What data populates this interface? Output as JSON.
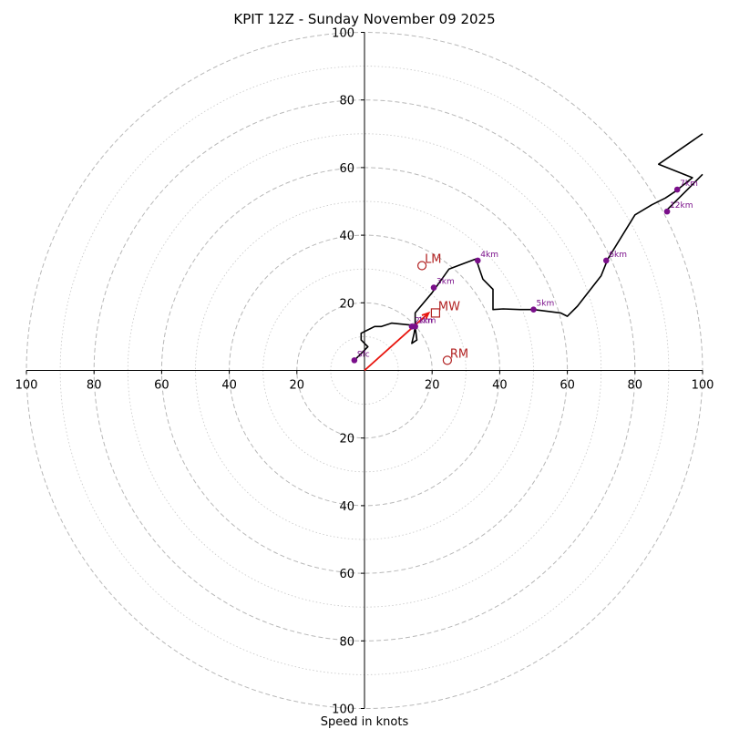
{
  "chart_data": {
    "type": "scatter",
    "subtype": "hodograph",
    "title": "KPIT 12Z - Sunday November 09 2025",
    "xlabel": "Speed in knots",
    "ylabel": "",
    "xlim": [
      -100,
      100
    ],
    "ylim": [
      -100,
      100
    ],
    "rings_major": [
      20,
      40,
      60,
      80,
      100
    ],
    "rings_minor": [
      10,
      30,
      50,
      70,
      90
    ],
    "x_tick_labels": [
      "100",
      "80",
      "60",
      "40",
      "20",
      "20",
      "40",
      "60",
      "80",
      "100"
    ],
    "y_tick_labels": [
      "100",
      "80",
      "60",
      "40",
      "20",
      "20",
      "40",
      "60",
      "80",
      "100"
    ],
    "hodograph": [
      [
        -3,
        3
      ],
      [
        -2,
        4
      ],
      [
        -1,
        5
      ],
      [
        1,
        7
      ],
      [
        0,
        8
      ],
      [
        -1,
        9
      ],
      [
        -1,
        11
      ],
      [
        1,
        12
      ],
      [
        3,
        13
      ],
      [
        5,
        13
      ],
      [
        8,
        14
      ],
      [
        10,
        13.8
      ],
      [
        13,
        13.5
      ],
      [
        15,
        13.3
      ],
      [
        14.7,
        11
      ],
      [
        14,
        8
      ],
      [
        15.5,
        9
      ],
      [
        15,
        13
      ],
      [
        15,
        15
      ],
      [
        15,
        17
      ],
      [
        20,
        23
      ],
      [
        25,
        30
      ],
      [
        33,
        33
      ],
      [
        34,
        30
      ],
      [
        35,
        27
      ],
      [
        38,
        24
      ],
      [
        38,
        20
      ],
      [
        38,
        18
      ],
      [
        41,
        18.2
      ],
      [
        46,
        18
      ],
      [
        50,
        18
      ],
      [
        58,
        17
      ],
      [
        60,
        16
      ],
      [
        63,
        19
      ],
      [
        70,
        28
      ],
      [
        72,
        33
      ],
      [
        80,
        46
      ],
      [
        85,
        49
      ],
      [
        89,
        51
      ],
      [
        92,
        53
      ],
      [
        97,
        57
      ],
      [
        87,
        61
      ],
      [
        100,
        70
      ]
    ],
    "hodograph_upper": [
      [
        89,
        47
      ],
      [
        95,
        53
      ],
      [
        100,
        58
      ]
    ],
    "height_markers": [
      {
        "label": "Sfc",
        "u": -3,
        "v": 3
      },
      {
        "label": "1km",
        "u": 15,
        "v": 13
      },
      {
        "label": "2km",
        "u": 14,
        "v": 13
      },
      {
        "label": "3km",
        "u": 20.5,
        "v": 24.5
      },
      {
        "label": "4km",
        "u": 33.5,
        "v": 32.5
      },
      {
        "label": "5km",
        "u": 50,
        "v": 18
      },
      {
        "label": "6km",
        "u": 71.5,
        "v": 32.5
      },
      {
        "label": "7km",
        "u": 92.5,
        "v": 53.5
      },
      {
        "label": "12km",
        "u": 89.5,
        "v": 47
      }
    ],
    "storm_motion": [
      {
        "label": "LM",
        "u": 17,
        "v": 31,
        "marker": "circle"
      },
      {
        "label": "MW",
        "u": 21,
        "v": 17,
        "marker": "square"
      },
      {
        "label": "RM",
        "u": 24.5,
        "v": 3,
        "marker": "circle"
      }
    ],
    "bunkers_vector": {
      "from": [
        0,
        0
      ],
      "to": [
        19,
        17
      ]
    },
    "colors": {
      "trace": "#000000",
      "markers": "#7a0f8a",
      "storm": "#b22222",
      "vector": "#e8150e",
      "grid": "#b8b8b8"
    }
  }
}
